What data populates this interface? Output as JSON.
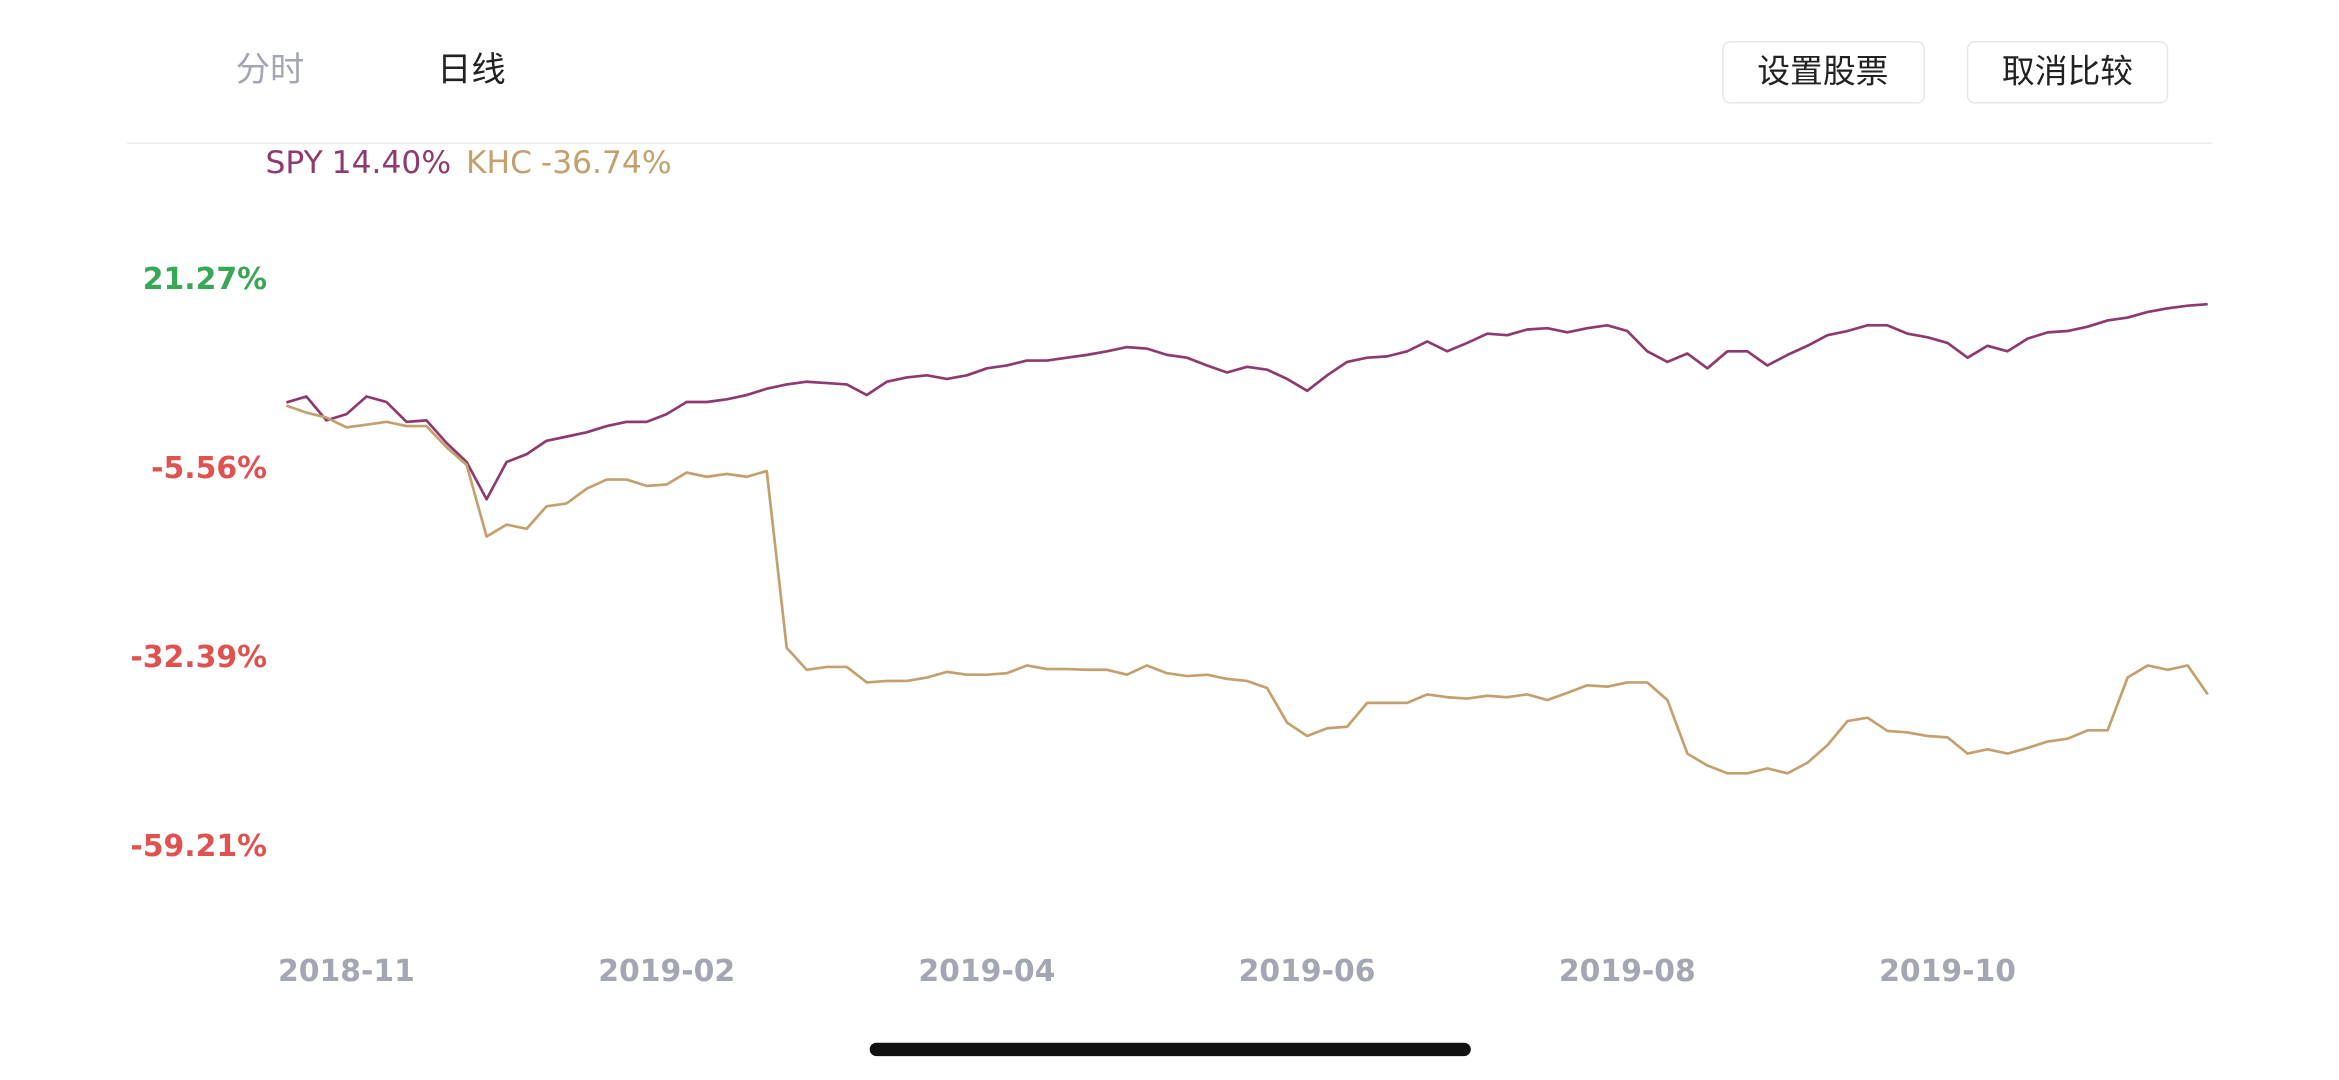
{
  "tabs": [
    "分时",
    "日线"
  ],
  "buttons": [
    "设置股票",
    "取消比较"
  ],
  "chart_data": {
    "type": "line",
    "categories": [
      null,
      null,
      null,
      "2018-11",
      null,
      null,
      null,
      null,
      null,
      null,
      null,
      null,
      null,
      null,
      null,
      null,
      null,
      null,
      null,
      "2019-02",
      null,
      null,
      null,
      null,
      null,
      null,
      null,
      null,
      null,
      null,
      null,
      null,
      null,
      null,
      null,
      "2019-04",
      null,
      null,
      null,
      null,
      null,
      null,
      null,
      null,
      null,
      null,
      null,
      null,
      null,
      null,
      null,
      "2019-06",
      null,
      null,
      null,
      null,
      null,
      null,
      null,
      null,
      null,
      null,
      null,
      null,
      null,
      null,
      null,
      "2019-08",
      null,
      null,
      null,
      null,
      null,
      null,
      null,
      null,
      null,
      null,
      null,
      null,
      null,
      null,
      null,
      "2019-10",
      null,
      null,
      null,
      null,
      null,
      null,
      null,
      null,
      null,
      null,
      null,
      null,
      null
    ],
    "series": [
      {
        "name": "SPY",
        "change": "14.40%",
        "color": "#8e3a6e",
        "values": [
          3.95,
          4.8,
          1.4,
          2.3,
          4.8,
          4.0,
          1.2,
          1.4,
          -1.8,
          -4.5,
          -9.8,
          -4.5,
          -3.4,
          -1.5,
          -0.9,
          -0.3,
          0.6,
          1.2,
          1.2,
          2.3,
          4.0,
          4.0,
          4.4,
          5.0,
          5.9,
          6.5,
          6.9,
          6.7,
          6.5,
          5.0,
          6.9,
          7.5,
          7.8,
          7.3,
          7.8,
          8.8,
          9.2,
          9.9,
          9.9,
          10.3,
          10.7,
          11.2,
          11.8,
          11.6,
          10.7,
          10.3,
          9.2,
          8.2,
          9.0,
          8.6,
          7.3,
          5.6,
          7.8,
          9.7,
          10.3,
          10.5,
          11.2,
          12.6,
          11.2,
          12.4,
          13.7,
          13.5,
          14.3,
          14.5,
          13.9,
          14.5,
          14.9,
          14.1,
          11.2,
          9.7,
          10.9,
          8.8,
          11.2,
          11.2,
          9.2,
          10.7,
          12.0,
          13.5,
          14.1,
          14.9,
          14.9,
          13.7,
          13.2,
          12.4,
          10.3,
          12.0,
          11.2,
          13.0,
          13.9,
          14.1,
          14.7,
          15.6,
          16.0,
          16.8,
          17.3,
          17.7,
          17.9
        ]
      },
      {
        "name": "KHC",
        "change": "-36.74%",
        "color": "#c4a06e",
        "values": [
          3.5,
          2.5,
          1.8,
          0.4,
          0.8,
          1.2,
          0.6,
          0.6,
          -2.4,
          -4.9,
          -15.1,
          -13.4,
          -14.0,
          -10.8,
          -10.4,
          -8.3,
          -7.0,
          -7.0,
          -7.9,
          -7.7,
          -6.0,
          -6.6,
          -6.2,
          -6.6,
          -5.8,
          -30.9,
          -34.0,
          -33.6,
          -33.6,
          -35.8,
          -35.6,
          -35.6,
          -35.1,
          -34.3,
          -34.7,
          -34.7,
          -34.5,
          -33.4,
          -33.9,
          -33.9,
          -34.0,
          -34.0,
          -34.7,
          -33.4,
          -34.5,
          -34.9,
          -34.7,
          -35.3,
          -35.6,
          -36.6,
          -41.5,
          -43.4,
          -42.3,
          -42.1,
          -38.7,
          -38.7,
          -38.7,
          -37.5,
          -37.9,
          -38.1,
          -37.7,
          -37.9,
          -37.5,
          -38.3,
          -37.3,
          -36.2,
          -36.4,
          -35.8,
          -35.8,
          -38.3,
          -45.9,
          -47.6,
          -48.7,
          -48.7,
          -48.0,
          -48.7,
          -47.2,
          -44.7,
          -41.3,
          -40.8,
          -42.7,
          -42.9,
          -43.4,
          -43.6,
          -45.9,
          -45.3,
          -45.9,
          -45.1,
          -44.2,
          -43.8,
          -42.6,
          -42.6,
          -35.1,
          -33.4,
          -34.0,
          -33.4,
          -37.5
        ]
      }
    ],
    "ylim": [
      -59.21,
      21.27
    ],
    "yticks": [
      {
        "value": 21.27,
        "label": "21.27%"
      },
      {
        "value": -5.56,
        "label": "-5.56%"
      },
      {
        "value": -32.39,
        "label": "-32.39%"
      },
      {
        "value": -59.21,
        "label": "-59.21%"
      }
    ]
  }
}
